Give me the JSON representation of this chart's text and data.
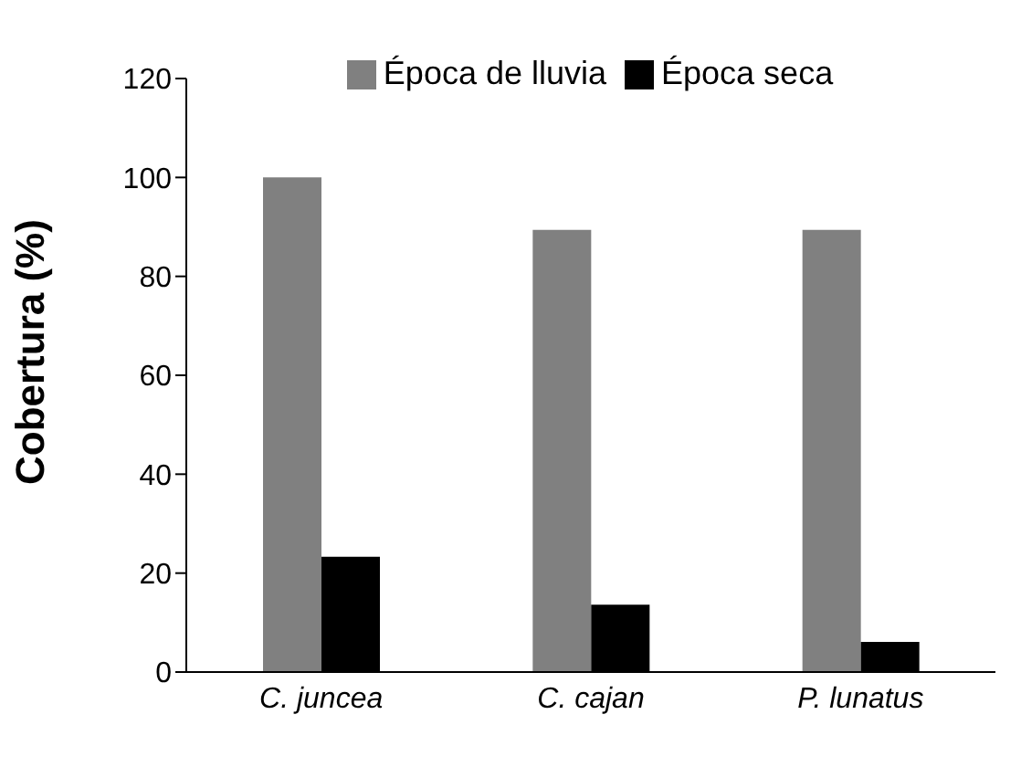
{
  "chart_data": {
    "type": "bar",
    "ylabel": "Cobertura (%)",
    "categories": [
      "C. juncea",
      "C. cajan",
      "P. lunatus"
    ],
    "series": [
      {
        "name": "Época de lluvia",
        "color": "#808080",
        "values": [
          100,
          89.4,
          89.4
        ]
      },
      {
        "name": "Época seca",
        "color": "#000000",
        "values": [
          23.3,
          13.6,
          6.1
        ]
      }
    ],
    "ylim": [
      0,
      120
    ],
    "yticks": [
      0,
      20,
      40,
      60,
      80,
      100,
      120
    ],
    "grid": false,
    "legend": "top"
  }
}
